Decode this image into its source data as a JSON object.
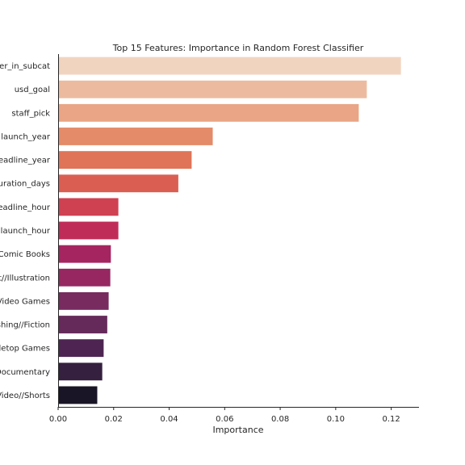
{
  "chart_data": {
    "type": "bar",
    "orientation": "horizontal",
    "title": "Top 15 Features: Importance in Random Forest Classifier",
    "xlabel": "Importance",
    "ylabel": "",
    "categories": [
      "er_in_subcat",
      "usd_goal",
      "staff_pick",
      "launch_year",
      "eadline_year",
      "uration_days",
      "eadline_hour",
      "launch_hour",
      "Comic Books",
      "rt//Illustration",
      "Video Games",
      "shing//Fiction",
      "letop Games",
      "Documentary",
      "Video//Shorts"
    ],
    "values": [
      0.1235,
      0.1112,
      0.1083,
      0.0557,
      0.0481,
      0.0433,
      0.0217,
      0.0217,
      0.019,
      0.0188,
      0.0182,
      0.0177,
      0.0164,
      0.0159,
      0.0141
    ],
    "colors": [
      "#f1d4c0",
      "#ecbb9f",
      "#e9a585",
      "#e48b69",
      "#e07458",
      "#da5f52",
      "#cf4051",
      "#c02c58",
      "#a52560",
      "#962761",
      "#772b5f",
      "#652a5a",
      "#4e2552",
      "#35203f",
      "#1a1526"
    ],
    "xlim": [
      0,
      0.13
    ],
    "xticks": [
      0.0,
      0.02,
      0.04,
      0.06,
      0.08,
      0.1,
      0.12
    ],
    "xtick_labels": [
      "0.00",
      "0.02",
      "0.04",
      "0.06",
      "0.08",
      "0.10",
      "0.12"
    ],
    "grid": false,
    "legend": "none"
  }
}
